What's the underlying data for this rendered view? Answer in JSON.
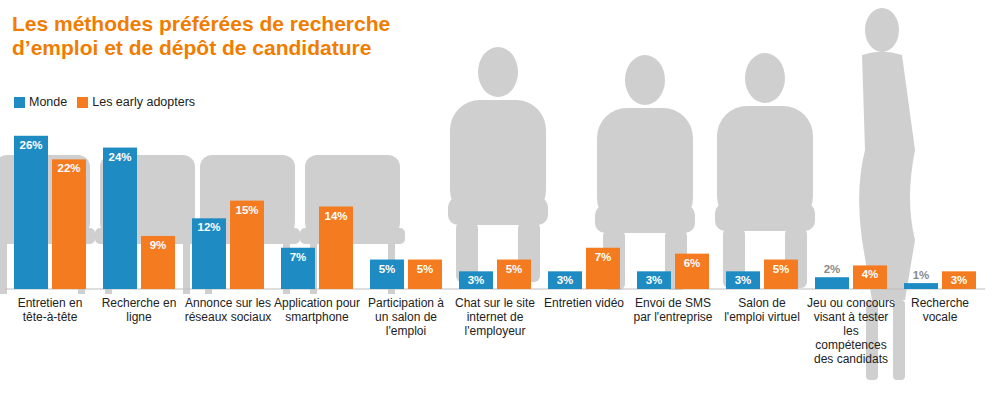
{
  "chart_data": {
    "type": "bar",
    "title": "Les méthodes préférées de recherche d’emploi et de dépôt de candidature",
    "categories": [
      "Entretien en tête-à-tête",
      "Recherche en ligne",
      "Annonce sur les réseaux sociaux",
      "Application pour smartphone",
      "Participation à un salon de l'emploi",
      "Chat sur le site internet de l'employeur",
      "Entretien vidéo",
      "Envoi de SMS par l'entreprise",
      "Salon de l'emploi virtuel",
      "Jeu ou concours visant à tester les compétences des candidats",
      "Recherche vocale"
    ],
    "series": [
      {
        "name": "Monde",
        "color": "#1f8bc3",
        "values": [
          26,
          24,
          12,
          7,
          5,
          3,
          3,
          3,
          3,
          2,
          1
        ],
        "value_labels": [
          "26%",
          "24%",
          "12%",
          "7%",
          "5%",
          "3%",
          "3%",
          "3%",
          "3%",
          "2%",
          "1%"
        ]
      },
      {
        "name": "Les early adopters",
        "color": "#f47b20",
        "values": [
          22,
          9,
          15,
          14,
          5,
          5,
          7,
          6,
          5,
          4,
          3
        ],
        "value_labels": [
          "22%",
          "9%",
          "15%",
          "14%",
          "5%",
          "5%",
          "7%",
          "6%",
          "5%",
          "4%",
          "3%"
        ]
      }
    ],
    "ylim": [
      0,
      28
    ],
    "data_labels": true,
    "tick_labels": false,
    "grid": false,
    "legend": "top-left"
  }
}
